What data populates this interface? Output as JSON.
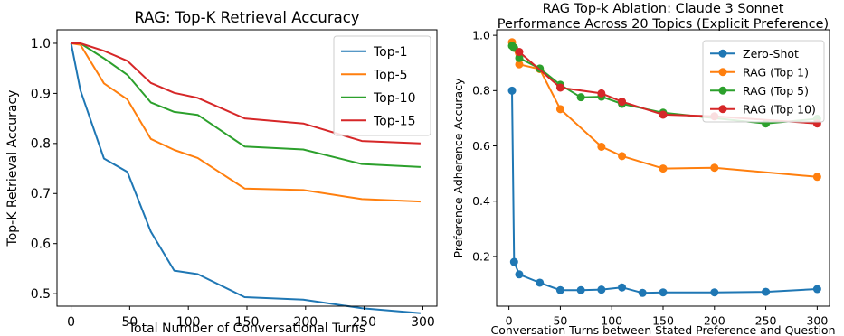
{
  "chart_data": [
    {
      "type": "line",
      "title": "RAG: Top-K Retrieval Accuracy",
      "xlabel": "Total Number of Conversational Turns",
      "ylabel": "Top-K Retrieval Accuracy",
      "xlim": [
        -12,
        312
      ],
      "ylim": [
        0.475,
        1.027
      ],
      "xticks": [
        0,
        50,
        100,
        150,
        200,
        250,
        300
      ],
      "yticks": [
        0.5,
        0.6,
        0.7,
        0.8,
        0.9,
        1.0
      ],
      "ytick_labels": [
        "0.5",
        "0.6",
        "0.7",
        "0.8",
        "0.9",
        "1.0"
      ],
      "grid": false,
      "legend": "top-right",
      "markers": false,
      "series": [
        {
          "name": "Top-1",
          "color": "#1f77b4",
          "x": [
            0,
            8,
            28,
            48,
            68,
            88,
            108,
            148,
            198,
            248,
            298
          ],
          "y": [
            1.0,
            0.906,
            0.77,
            0.743,
            0.624,
            0.546,
            0.539,
            0.493,
            0.488,
            0.471,
            0.461
          ]
        },
        {
          "name": "Top-5",
          "color": "#ff7f0e",
          "x": [
            0,
            8,
            28,
            48,
            68,
            88,
            108,
            148,
            198,
            248,
            298
          ],
          "y": [
            1.0,
            0.997,
            0.92,
            0.888,
            0.809,
            0.787,
            0.771,
            0.71,
            0.707,
            0.689,
            0.684
          ]
        },
        {
          "name": "Top-10",
          "color": "#2ca02c",
          "x": [
            0,
            8,
            28,
            48,
            68,
            88,
            108,
            148,
            198,
            248,
            298
          ],
          "y": [
            1.0,
            1.0,
            0.97,
            0.937,
            0.882,
            0.863,
            0.857,
            0.794,
            0.788,
            0.759,
            0.753
          ]
        },
        {
          "name": "Top-15",
          "color": "#d62728",
          "x": [
            0,
            8,
            28,
            48,
            68,
            88,
            108,
            148,
            198,
            248,
            298
          ],
          "y": [
            1.0,
            1.0,
            0.985,
            0.965,
            0.921,
            0.901,
            0.891,
            0.85,
            0.84,
            0.805,
            0.8
          ]
        }
      ]
    },
    {
      "type": "line",
      "title": "RAG Top-k Ablation: Claude 3 Sonnet\nPerformance Across 20 Topics (Explicit Preference)",
      "title_lines": [
        "RAG Top-k Ablation: Claude 3 Sonnet",
        "Performance Across 20 Topics (Explicit Preference)"
      ],
      "xlabel": "Conversation Turns between Stated Preference and Question",
      "ylabel": "Preference Adherence Accuracy",
      "xlim": [
        -12,
        312
      ],
      "ylim": [
        0.02,
        1.02
      ],
      "xticks": [
        0,
        50,
        100,
        150,
        200,
        250,
        300
      ],
      "yticks": [
        0.2,
        0.4,
        0.6,
        0.8,
        1.0
      ],
      "ytick_labels": [
        "0.2",
        "0.4",
        "0.6",
        "0.8",
        "1.0"
      ],
      "grid": false,
      "legend": "top-right",
      "markers": true,
      "series": [
        {
          "name": "Zero-Shot",
          "color": "#1f77b4",
          "x": [
            3,
            5,
            10,
            30,
            50,
            70,
            90,
            110,
            130,
            150,
            200,
            250,
            300
          ],
          "y": [
            0.8,
            0.18,
            0.135,
            0.105,
            0.078,
            0.078,
            0.08,
            0.088,
            0.068,
            0.07,
            0.07,
            0.072,
            0.082
          ]
        },
        {
          "name": "RAG (Top 1)",
          "color": "#ff7f0e",
          "x": [
            3,
            5,
            10,
            30,
            50,
            90,
            110,
            150,
            200,
            300
          ],
          "y": [
            0.975,
            0.955,
            0.895,
            0.878,
            0.733,
            0.597,
            0.563,
            0.518,
            0.521,
            0.488
          ]
        },
        {
          "name": "RAG (Top 5)",
          "color": "#2ca02c",
          "x": [
            3,
            5,
            10,
            30,
            50,
            70,
            90,
            110,
            150,
            250,
            300
          ],
          "y": [
            0.962,
            0.955,
            0.918,
            0.88,
            0.821,
            0.776,
            0.778,
            0.752,
            0.72,
            0.681,
            0.698
          ]
        },
        {
          "name": "RAG (Top 10)",
          "color": "#d62728",
          "x": [
            10,
            50,
            90,
            110,
            150,
            200,
            300
          ],
          "y": [
            0.94,
            0.811,
            0.79,
            0.76,
            0.713,
            0.707,
            0.681
          ]
        }
      ]
    }
  ]
}
